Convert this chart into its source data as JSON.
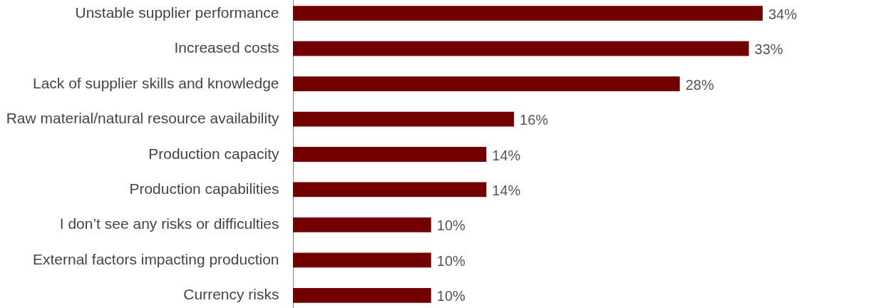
{
  "chart_data": {
    "type": "bar",
    "orientation": "horizontal",
    "categories": [
      "Unstable supplier performance",
      "Increased costs",
      "Lack of supplier skills and knowledge",
      "Raw material/natural resource availability",
      "Production capacity",
      "Production capabilities",
      "I don’t see any risks or difficulties",
      "External factors impacting production",
      "Currency risks"
    ],
    "values": [
      34,
      33,
      28,
      16,
      14,
      14,
      10,
      10,
      10
    ],
    "color": "#720000",
    "value_labels": [
      "34%",
      "33%",
      "28%",
      "16%",
      "14%",
      "14%",
      "10%",
      "10%",
      "10%"
    ]
  }
}
